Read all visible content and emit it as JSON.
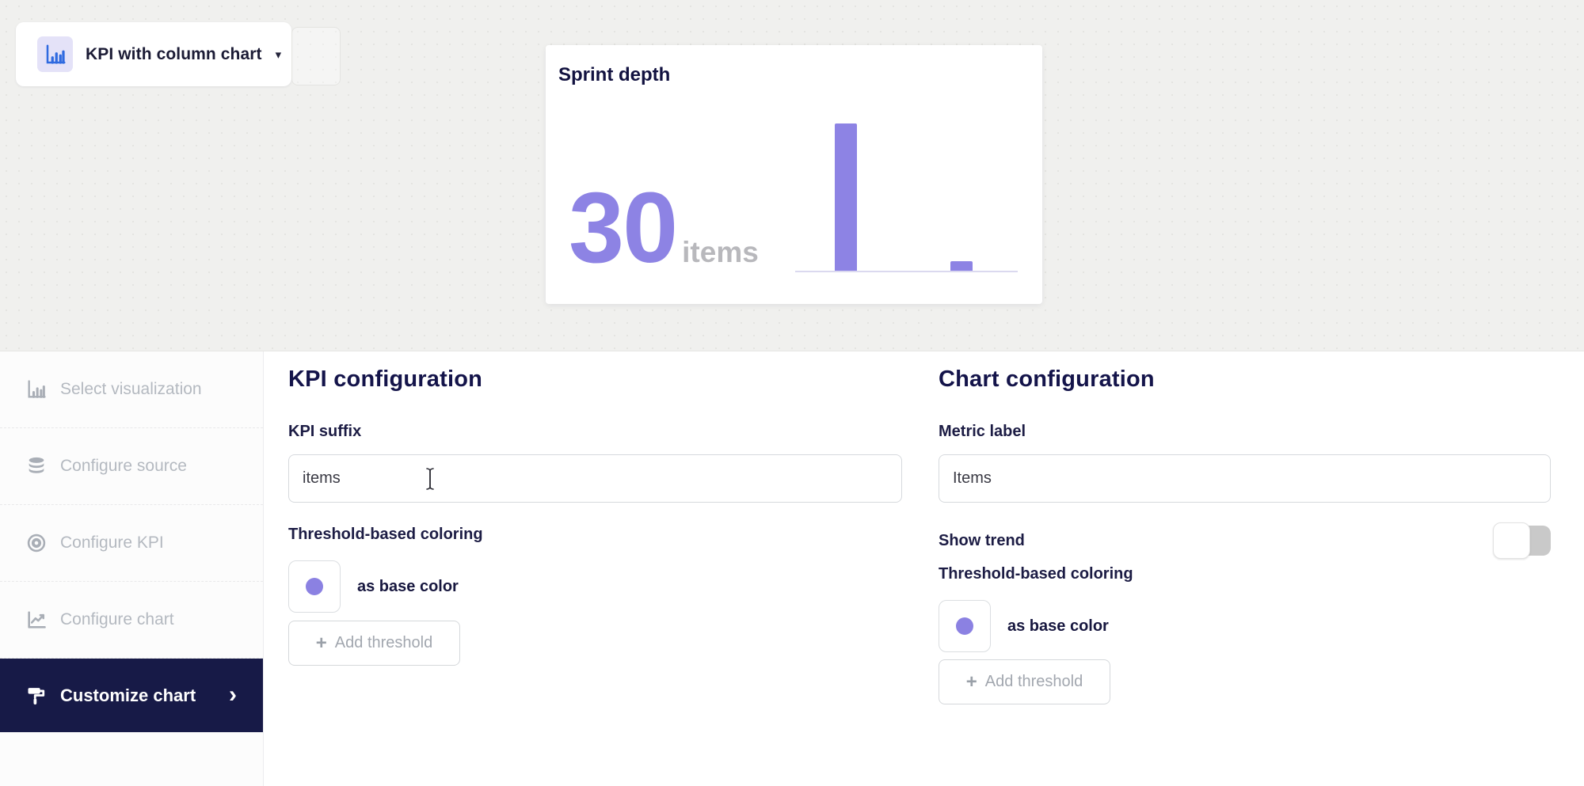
{
  "selector": {
    "label": "KPI with column chart"
  },
  "preview": {
    "title": "Sprint depth",
    "kpi_value": "30",
    "kpi_suffix": "items"
  },
  "chart_data": {
    "type": "bar",
    "title": "Sprint depth",
    "values": [
      30,
      2
    ],
    "unit": "items",
    "kpi_value": 30,
    "ylim": [
      0,
      30
    ],
    "grid": false,
    "bar_color": "#8d83e4",
    "axis_color": "#dbd9ef"
  },
  "sidebar": {
    "items": [
      {
        "label": "Select visualization",
        "icon": "column-chart-icon",
        "active": false
      },
      {
        "label": "Configure source",
        "icon": "database-icon",
        "active": false
      },
      {
        "label": "Configure KPI",
        "icon": "target-icon",
        "active": false
      },
      {
        "label": "Configure chart",
        "icon": "line-chart-icon",
        "active": false
      },
      {
        "label": "Customize chart",
        "icon": "paint-roller-icon",
        "active": true
      }
    ]
  },
  "kpi_config": {
    "heading": "KPI configuration",
    "suffix_label": "KPI suffix",
    "suffix_value": "items",
    "threshold_label": "Threshold-based coloring",
    "base_color_text": "as base color",
    "add_threshold_label": "Add threshold"
  },
  "chart_config": {
    "heading": "Chart configuration",
    "metric_label": "Metric label",
    "metric_value": "Items",
    "show_trend_label": "Show trend",
    "show_trend_enabled": false,
    "threshold_label": "Threshold-based coloring",
    "base_color_text": "as base color",
    "add_threshold_label": "Add threshold"
  },
  "glyphs": {
    "caret_down": "▾",
    "chevron_right": "›",
    "plus": "+"
  },
  "colors": {
    "accent_purple": "#8d83e4",
    "swatch_purple": "#8b81e2",
    "navy_text": "#15154a",
    "active_item_bg": "#171a47",
    "icon_blue": "#2f6ae0",
    "top_background": "#f0f0ee"
  }
}
